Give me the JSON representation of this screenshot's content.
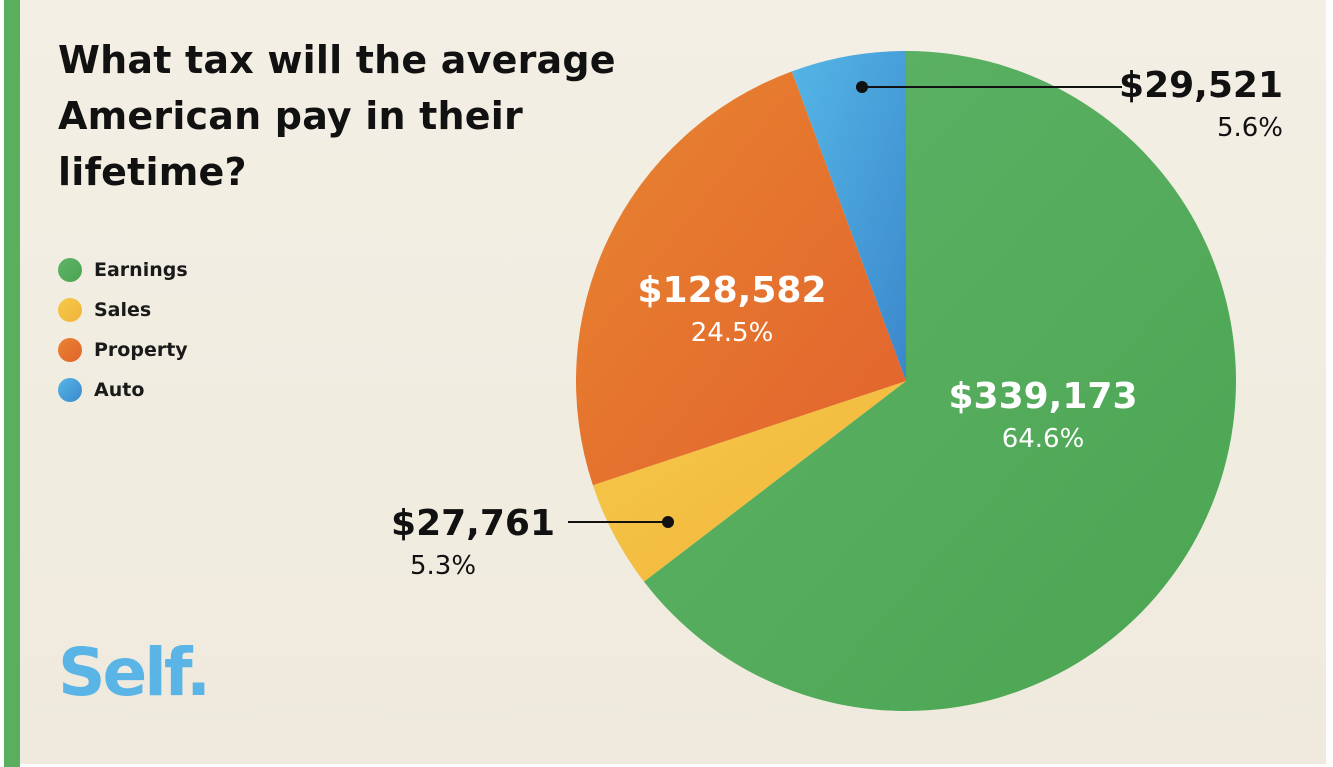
{
  "chart_data": {
    "type": "pie",
    "title": "What tax will the average American pay in their lifetime?",
    "slices": [
      {
        "name": "Earnings",
        "value": 339173,
        "value_label": "$339,173",
        "percent": 64.6,
        "percent_label": "64.6%",
        "color": "#4aa551",
        "color_light": "#5fb368"
      },
      {
        "name": "Sales",
        "value": 27761,
        "value_label": "$27,761",
        "percent": 5.3,
        "percent_label": "5.3%",
        "color": "#f1b43b",
        "color_light": "#f5c94a"
      },
      {
        "name": "Property",
        "value": 128582,
        "value_label": "$128,582",
        "percent": 24.5,
        "percent_label": "24.5%",
        "color": "#e2622e",
        "color_light": "#e8852f"
      },
      {
        "name": "Auto",
        "value": 29521,
        "value_label": "$29,521",
        "percent": 5.6,
        "percent_label": "5.6%",
        "color": "#3b88cc",
        "color_light": "#55b6e6"
      }
    ],
    "legend": [
      "Earnings",
      "Sales",
      "Property",
      "Auto"
    ],
    "legend_position": "left"
  },
  "logo": {
    "text": "Self",
    "dot": "."
  }
}
